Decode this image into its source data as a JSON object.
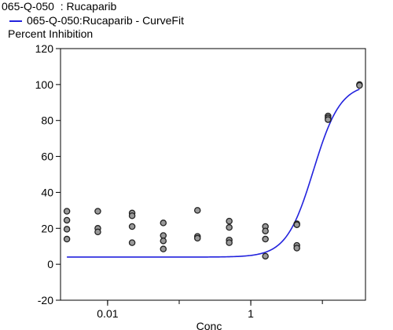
{
  "chart_data": {
    "type": "scatter",
    "title": "065-Q-050  : Rucaparib",
    "ylabel": "Percent Inhibition",
    "xlabel": "Conc",
    "x_scale": "log",
    "xlim": [
      0.0022,
      40
    ],
    "ylim": [
      -20,
      120
    ],
    "yticks": [
      "-20",
      "0",
      "20",
      "40",
      "60",
      "80",
      "100",
      "120"
    ],
    "xticks": [
      {
        "label": "0.01",
        "value": 0.01
      },
      {
        "label": "1",
        "value": 1
      }
    ],
    "legend": [
      {
        "name": "065-Q-050:Rucaparib - CurveFit",
        "color": "#2222dd"
      }
    ],
    "grid": false,
    "series": [
      {
        "kind": "points",
        "marker_fill": "#999999",
        "points": [
          {
            "x": 0.0027,
            "y": 29.5
          },
          {
            "x": 0.0027,
            "y": 24.5
          },
          {
            "x": 0.0027,
            "y": 19.5
          },
          {
            "x": 0.0027,
            "y": 14
          },
          {
            "x": 0.0073,
            "y": 29.5
          },
          {
            "x": 0.0073,
            "y": 20
          },
          {
            "x": 0.0073,
            "y": 18
          },
          {
            "x": 0.022,
            "y": 28.5
          },
          {
            "x": 0.022,
            "y": 27
          },
          {
            "x": 0.022,
            "y": 21
          },
          {
            "x": 0.022,
            "y": 12
          },
          {
            "x": 0.06,
            "y": 23
          },
          {
            "x": 0.06,
            "y": 16
          },
          {
            "x": 0.06,
            "y": 13
          },
          {
            "x": 0.06,
            "y": 8.5
          },
          {
            "x": 0.18,
            "y": 30
          },
          {
            "x": 0.18,
            "y": 15.5
          },
          {
            "x": 0.18,
            "y": 14.5
          },
          {
            "x": 0.5,
            "y": 24
          },
          {
            "x": 0.5,
            "y": 20.5
          },
          {
            "x": 0.5,
            "y": 13.5
          },
          {
            "x": 0.5,
            "y": 12
          },
          {
            "x": 1.6,
            "y": 21
          },
          {
            "x": 1.6,
            "y": 18.5
          },
          {
            "x": 1.6,
            "y": 14
          },
          {
            "x": 1.6,
            "y": 4.5
          },
          {
            "x": 4.4,
            "y": 22.5
          },
          {
            "x": 4.4,
            "y": 22
          },
          {
            "x": 4.4,
            "y": 10.5
          },
          {
            "x": 4.4,
            "y": 9
          },
          {
            "x": 12,
            "y": 82.5
          },
          {
            "x": 12,
            "y": 81.5
          },
          {
            "x": 12,
            "y": 80.5
          },
          {
            "x": 33,
            "y": 100
          },
          {
            "x": 33,
            "y": 99.5
          }
        ]
      },
      {
        "kind": "curve",
        "name": "065-Q-050:Rucaparib - CurveFit",
        "color": "#2222dd",
        "model": "4PL",
        "bottom": 4,
        "top": 100.5,
        "ec50": 7.5,
        "hill": 2.3,
        "x_range": [
          0.0027,
          33
        ]
      }
    ]
  }
}
